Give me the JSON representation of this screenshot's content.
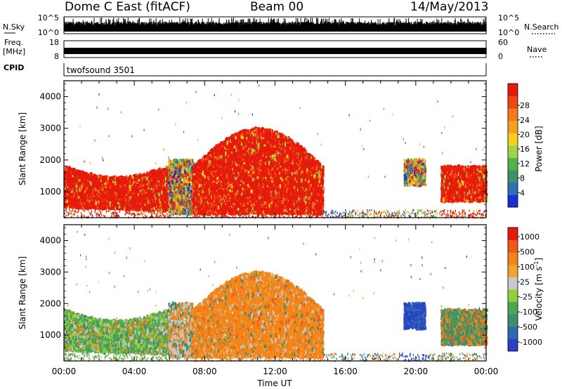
{
  "header": {
    "station": "Dome C East (fitACF)",
    "beam": "Beam 00",
    "date": "14/May/2013"
  },
  "strip_labels": {
    "nsky": "N.Sky",
    "nsky_top": "10^5",
    "nsky_bottom": "10^0",
    "nsearch": "N.Search",
    "nsearch_top": "10^5",
    "nsearch_bottom": "10^0",
    "freq_line1": "Freq.",
    "freq_line2": "[MHz]",
    "freq_top": "18",
    "freq_bottom": "8",
    "nave": "Nave",
    "nave_top": "60",
    "nave_bottom": "0",
    "cpid": "CPID",
    "cpid_value": "twofsound 3501"
  },
  "chart_data": [
    {
      "type": "heatmap",
      "panel": "power",
      "ylabel": "Slant Range [km]",
      "yticks": [
        "1000",
        "2000",
        "3000",
        "4000"
      ],
      "ylim": [
        180,
        4500
      ],
      "xlim_hours": [
        0,
        24
      ],
      "colorbar": {
        "label": "Power [dB]",
        "ticks": [
          "4",
          "8",
          "12",
          "16",
          "20",
          "24",
          "28"
        ],
        "colors": [
          "#1a2fd9",
          "#2f6fb5",
          "#3e9166",
          "#4fb34a",
          "#9fd34a",
          "#f5d020",
          "#f7a020",
          "#f37a18",
          "#ee4812",
          "#e61a0c"
        ]
      },
      "echo_regions": [
        {
          "t": [
            0.0,
            5.9
          ],
          "range": [
            400,
            1800
          ],
          "dominant": "red (~28 dB)"
        },
        {
          "t": [
            5.9,
            7.3
          ],
          "range": [
            300,
            2000
          ],
          "dominant": "mixed"
        },
        {
          "t": [
            7.3,
            14.7
          ],
          "range": [
            300,
            3000
          ],
          "dominant": "red (~28 dB)"
        },
        {
          "t": [
            19.3,
            20.5
          ],
          "range": [
            1200,
            2000
          ],
          "dominant": "mixed"
        },
        {
          "t": [
            21.4,
            24.0
          ],
          "range": [
            700,
            1800
          ],
          "dominant": "red (~28 dB)"
        }
      ]
    },
    {
      "type": "heatmap",
      "panel": "velocity",
      "ylabel": "Slant Range [km]",
      "yticks": [
        "1000",
        "2000",
        "3000",
        "4000"
      ],
      "ylim": [
        180,
        4500
      ],
      "xlim_hours": [
        0,
        24
      ],
      "xlabel": "Time UT",
      "xticks": [
        "00:00",
        "04:00",
        "08:00",
        "12:00",
        "16:00",
        "20:00",
        "00:00"
      ],
      "colorbar": {
        "label": "Velocity [m s-1]",
        "ticks": [
          "1000",
          "500",
          "100",
          "25",
          "-25",
          "-100",
          "-500",
          "-1000"
        ],
        "colors": [
          "#2a40c8",
          "#2f6ab0",
          "#3b8f70",
          "#49a94e",
          "#8cd03c",
          "#c8c8c8",
          "#f2a230",
          "#f38418",
          "#ef5a14",
          "#e61a0c"
        ]
      },
      "echo_regions": [
        {
          "t": [
            0.0,
            5.9
          ],
          "range": [
            400,
            1800
          ],
          "dominant": "green (100 to 500 m/s)"
        },
        {
          "t": [
            5.9,
            7.3
          ],
          "range": [
            300,
            2000
          ],
          "dominant": "mixed"
        },
        {
          "t": [
            7.3,
            14.7
          ],
          "range": [
            300,
            3000
          ],
          "dominant": "orange (-100 to -500 m/s)"
        },
        {
          "t": [
            19.3,
            20.5
          ],
          "range": [
            1200,
            2000
          ],
          "dominant": "blue (>500 m/s)"
        },
        {
          "t": [
            21.4,
            24.0
          ],
          "range": [
            700,
            1800
          ],
          "dominant": "green/orange mix"
        }
      ]
    }
  ]
}
